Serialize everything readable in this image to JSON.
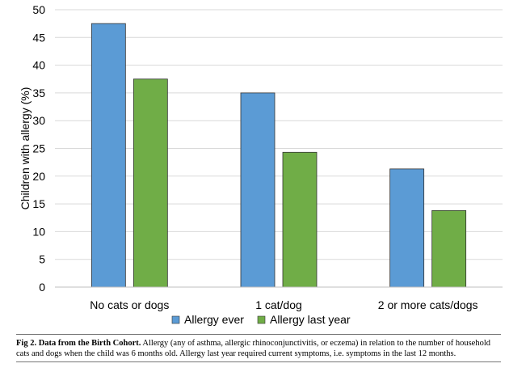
{
  "chart_data": {
    "type": "bar",
    "categories": [
      "No cats or dogs",
      "1 cat/dog",
      "2 or more cats/dogs"
    ],
    "series": [
      {
        "name": "Allergy ever",
        "values": [
          47.5,
          35.0,
          21.3
        ],
        "color": "#5b9bd5"
      },
      {
        "name": "Allergy last year",
        "values": [
          37.5,
          24.3,
          13.8
        ],
        "color": "#70ad47"
      }
    ],
    "ylabel": "Children with allergy (%)",
    "ylim": [
      0,
      50
    ],
    "yticks": [
      0,
      5,
      10,
      15,
      20,
      25,
      30,
      35,
      40,
      45,
      50
    ],
    "grid": true,
    "legend": "bottom"
  },
  "caption": {
    "label": "Fig 2. Data from the Birth Cohort.",
    "text": " Allergy (any of asthma, allergic rhinoconjunctivitis, or eczema) in relation to the number of household cats and dogs when the child was 6 months old. Allergy last year required current symptoms, i.e. symptoms in the last 12 months."
  }
}
